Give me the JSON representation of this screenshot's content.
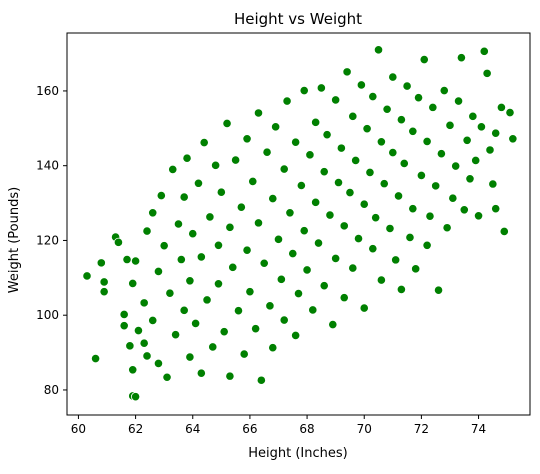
{
  "chart_data": {
    "type": "scatter",
    "title": "Height vs Weight",
    "xlabel": "Height (Inches)",
    "ylabel": "Weight (Pounds)",
    "xlim": [
      59.6,
      75.8
    ],
    "ylim": [
      73.3,
      175.5
    ],
    "x_ticks": [
      60,
      62,
      64,
      66,
      68,
      70,
      72,
      74
    ],
    "y_ticks": [
      80,
      100,
      120,
      140,
      160
    ],
    "grid": false,
    "legend": "none",
    "marker_color": "#008000",
    "marker_edge_color": "#ffffff",
    "series": [
      {
        "points": [
          [
            60.3,
            110.5
          ],
          [
            60.6,
            88.4
          ],
          [
            60.8,
            114.0
          ],
          [
            60.9,
            108.9
          ],
          [
            60.9,
            106.3
          ],
          [
            61.3,
            120.9
          ],
          [
            61.4,
            119.5
          ],
          [
            61.6,
            100.2
          ],
          [
            61.6,
            97.2
          ],
          [
            61.7,
            114.9
          ],
          [
            61.8,
            91.8
          ],
          [
            61.9,
            85.4
          ],
          [
            61.9,
            78.4
          ],
          [
            62.0,
            78.2
          ],
          [
            61.9,
            108.5
          ],
          [
            62.0,
            114.5
          ],
          [
            62.1,
            95.9
          ],
          [
            62.3,
            103.3
          ],
          [
            62.3,
            92.5
          ],
          [
            62.4,
            122.5
          ],
          [
            62.4,
            89.1
          ],
          [
            62.6,
            127.4
          ],
          [
            62.6,
            98.6
          ],
          [
            62.8,
            87.1
          ],
          [
            62.8,
            111.7
          ],
          [
            62.9,
            132.0
          ],
          [
            63.0,
            118.6
          ],
          [
            63.1,
            83.4
          ],
          [
            63.2,
            105.9
          ],
          [
            63.3,
            139.0
          ],
          [
            63.4,
            94.8
          ],
          [
            63.5,
            124.4
          ],
          [
            63.6,
            114.9
          ],
          [
            63.7,
            101.3
          ],
          [
            63.7,
            131.6
          ],
          [
            63.8,
            142.0
          ],
          [
            63.9,
            88.8
          ],
          [
            63.9,
            109.2
          ],
          [
            64.0,
            121.8
          ],
          [
            64.1,
            97.8
          ],
          [
            64.2,
            135.3
          ],
          [
            64.3,
            84.5
          ],
          [
            64.3,
            115.6
          ],
          [
            64.4,
            146.2
          ],
          [
            64.5,
            104.1
          ],
          [
            64.6,
            126.3
          ],
          [
            64.7,
            91.5
          ],
          [
            64.8,
            140.1
          ],
          [
            64.9,
            118.7
          ],
          [
            64.9,
            108.4
          ],
          [
            65.0,
            132.9
          ],
          [
            65.1,
            95.6
          ],
          [
            65.2,
            151.3
          ],
          [
            65.3,
            123.5
          ],
          [
            65.3,
            83.7
          ],
          [
            65.4,
            112.8
          ],
          [
            65.5,
            141.5
          ],
          [
            65.6,
            101.2
          ],
          [
            65.7,
            128.9
          ],
          [
            65.8,
            89.6
          ],
          [
            65.9,
            147.2
          ],
          [
            65.9,
            117.4
          ],
          [
            66.0,
            106.3
          ],
          [
            66.1,
            135.8
          ],
          [
            66.2,
            96.4
          ],
          [
            66.3,
            154.1
          ],
          [
            66.3,
            124.7
          ],
          [
            66.4,
            82.6
          ],
          [
            66.5,
            113.9
          ],
          [
            66.6,
            143.6
          ],
          [
            66.7,
            102.5
          ],
          [
            66.8,
            131.2
          ],
          [
            66.8,
            91.3
          ],
          [
            66.9,
            150.4
          ],
          [
            67.0,
            120.3
          ],
          [
            67.1,
            109.6
          ],
          [
            67.2,
            139.1
          ],
          [
            67.2,
            98.7
          ],
          [
            67.3,
            157.3
          ],
          [
            67.4,
            127.4
          ],
          [
            67.5,
            116.5
          ],
          [
            67.6,
            146.3
          ],
          [
            67.6,
            94.6
          ],
          [
            67.7,
            105.8
          ],
          [
            67.8,
            134.7
          ],
          [
            67.9,
            160.1
          ],
          [
            67.9,
            122.6
          ],
          [
            68.0,
            112.1
          ],
          [
            68.1,
            142.9
          ],
          [
            68.2,
            101.4
          ],
          [
            68.3,
            151.6
          ],
          [
            68.3,
            130.2
          ],
          [
            68.4,
            119.3
          ],
          [
            68.5,
            160.8
          ],
          [
            68.6,
            138.4
          ],
          [
            68.6,
            107.9
          ],
          [
            68.7,
            148.3
          ],
          [
            68.8,
            126.8
          ],
          [
            68.9,
            97.5
          ],
          [
            69.0,
            157.6
          ],
          [
            69.0,
            115.2
          ],
          [
            69.1,
            135.5
          ],
          [
            69.2,
            144.7
          ],
          [
            69.3,
            123.9
          ],
          [
            69.3,
            104.7
          ],
          [
            69.4,
            165.1
          ],
          [
            69.5,
            132.8
          ],
          [
            69.6,
            153.2
          ],
          [
            69.6,
            112.6
          ],
          [
            69.7,
            141.4
          ],
          [
            69.8,
            120.5
          ],
          [
            69.9,
            161.6
          ],
          [
            70.0,
            129.7
          ],
          [
            70.0,
            101.9
          ],
          [
            70.1,
            149.9
          ],
          [
            70.2,
            138.2
          ],
          [
            70.3,
            117.8
          ],
          [
            70.3,
            158.5
          ],
          [
            70.4,
            126.1
          ],
          [
            70.5,
            171.0
          ],
          [
            70.6,
            146.4
          ],
          [
            70.6,
            109.4
          ],
          [
            70.7,
            135.2
          ],
          [
            70.8,
            155.1
          ],
          [
            70.9,
            123.2
          ],
          [
            71.0,
            163.7
          ],
          [
            71.0,
            143.5
          ],
          [
            71.1,
            114.8
          ],
          [
            71.2,
            131.9
          ],
          [
            71.3,
            152.3
          ],
          [
            71.3,
            106.9
          ],
          [
            71.4,
            140.6
          ],
          [
            71.5,
            161.3
          ],
          [
            71.6,
            120.8
          ],
          [
            71.7,
            149.2
          ],
          [
            71.7,
            128.5
          ],
          [
            71.8,
            112.4
          ],
          [
            71.9,
            158.2
          ],
          [
            72.0,
            137.4
          ],
          [
            72.1,
            168.4
          ],
          [
            72.2,
            146.5
          ],
          [
            72.2,
            118.7
          ],
          [
            72.3,
            126.5
          ],
          [
            72.4,
            155.6
          ],
          [
            72.5,
            134.6
          ],
          [
            72.6,
            106.7
          ],
          [
            72.7,
            143.2
          ],
          [
            72.8,
            160.1
          ],
          [
            72.9,
            123.4
          ],
          [
            73.0,
            150.8
          ],
          [
            73.1,
            131.3
          ],
          [
            73.2,
            139.9
          ],
          [
            73.3,
            157.3
          ],
          [
            73.4,
            168.9
          ],
          [
            73.5,
            128.2
          ],
          [
            73.6,
            146.8
          ],
          [
            73.7,
            136.5
          ],
          [
            73.8,
            153.2
          ],
          [
            73.9,
            141.4
          ],
          [
            74.0,
            126.6
          ],
          [
            74.1,
            150.4
          ],
          [
            74.2,
            170.6
          ],
          [
            74.3,
            164.7
          ],
          [
            74.4,
            144.2
          ],
          [
            74.5,
            135.1
          ],
          [
            74.6,
            148.7
          ],
          [
            74.8,
            155.6
          ],
          [
            74.9,
            122.4
          ],
          [
            74.6,
            128.5
          ],
          [
            75.1,
            154.2
          ],
          [
            75.2,
            147.2
          ]
        ]
      }
    ]
  }
}
